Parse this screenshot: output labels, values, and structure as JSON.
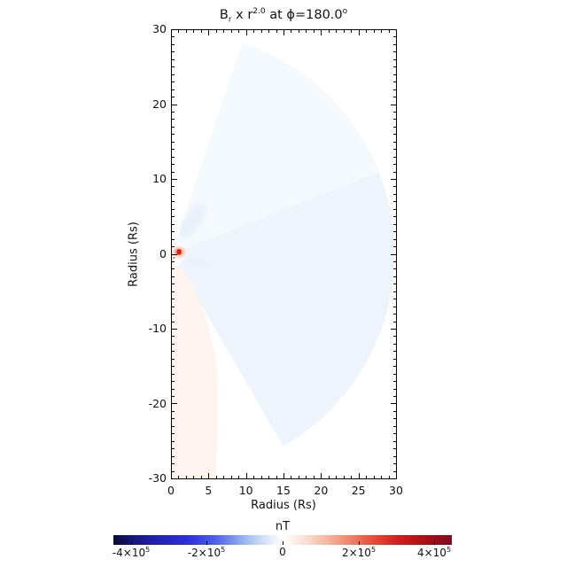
{
  "title": {
    "b": "B",
    "b_sub": "r",
    "times_r": " x r",
    "r_exp": "2.0",
    "at_phi": " at ϕ=180.0",
    "deg_sup": "o"
  },
  "axes": {
    "xlabel": "Radius (Rs)",
    "ylabel": "Radius (Rs)",
    "x_tick_labels": [
      "0",
      "5",
      "10",
      "15",
      "20",
      "25",
      "30"
    ],
    "y_tick_labels": [
      "30",
      "20",
      "10",
      "0",
      "-10",
      "-20",
      "-30"
    ]
  },
  "colorbar": {
    "title": "nT",
    "labels": [
      {
        "base": "-4×10",
        "exp": "5"
      },
      {
        "base": "-2×10",
        "exp": "5"
      },
      {
        "base": "0",
        "exp": ""
      },
      {
        "base": "2×10",
        "exp": "5"
      },
      {
        "base": "4×10",
        "exp": "5"
      }
    ]
  },
  "chart_data": {
    "type": "heatmap",
    "title": "B_r x r^2.0 at phi=180.0 deg",
    "xlabel": "Radius (Rs)",
    "ylabel": "Radius (Rs)",
    "xlim": [
      0,
      30
    ],
    "ylim": [
      -30,
      30
    ],
    "x_ticks": [
      0,
      5,
      10,
      15,
      20,
      25,
      30
    ],
    "y_ticks": [
      30,
      20,
      10,
      0,
      -10,
      -20,
      -30
    ],
    "grid": false,
    "colorbar": {
      "label": "nT",
      "tick_values": [
        -400000,
        -200000,
        0,
        200000,
        400000
      ],
      "approx_range": [
        -450000,
        450000
      ],
      "colormap": "diverging blue-white-red",
      "orientation": "horizontal-bottom"
    },
    "field_features": [
      {
        "name": "main-domain-sector",
        "shape": "circular sector from origin",
        "radial_extent_Rs": [
          0,
          29.7
        ],
        "angular_extent_deg": [
          -60,
          72
        ],
        "approx_value_nT": -15000,
        "appearance": "very pale blue (weak negative Br)"
      },
      {
        "name": "upper-lighter-wedge",
        "angular_extent_deg": [
          22,
          72
        ],
        "approx_value_nT": -8000,
        "appearance": "slightly lighter pale blue above dividing line from origin to (30,14)"
      },
      {
        "name": "south-polar-positive-band",
        "extent": "x 0-6 Rs, y -2 to -30 Rs along left edge",
        "approx_value_nT": 12000,
        "appearance": "very pale pink (weak positive Br)"
      },
      {
        "name": "inner-boundary-source-spot",
        "location_Rs": [
          1.0,
          0.1
        ],
        "approx_value_nT": 400000,
        "appearance": "small saturated red spot with pink halo at inner boundary"
      },
      {
        "name": "streamer-blob-north",
        "extent": "elongated from (1.5,2.5) to (5,8) Rs at ~57 deg",
        "approx_value_nT": -30000,
        "appearance": "slightly darker pale blue"
      },
      {
        "name": "streamer-blob-equator",
        "extent": "elongated near (1.2,-0.2) to (5.3,-2) Rs",
        "approx_value_nT": -25000,
        "appearance": "slightly darker pale blue"
      }
    ]
  }
}
